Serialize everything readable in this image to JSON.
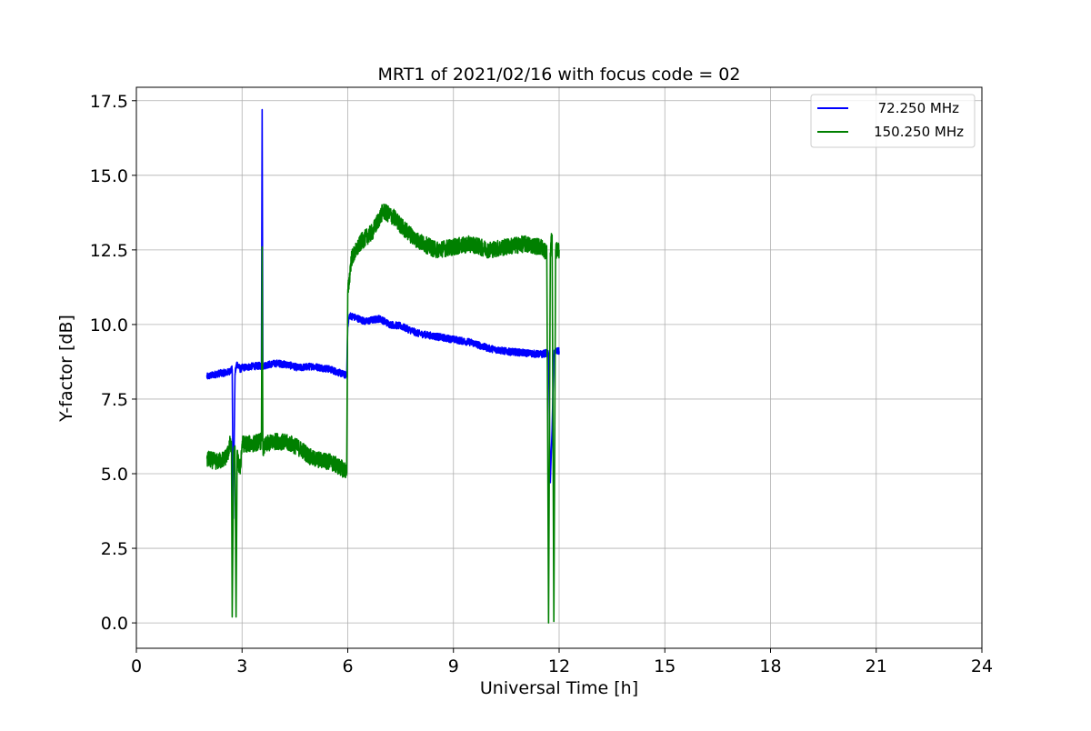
{
  "chart_data": {
    "type": "line",
    "title": "MRT1 of 2021/02/16 with focus code = 02",
    "xlabel": "Universal Time [h]",
    "ylabel": "Y-factor [dB]",
    "xlim": [
      0,
      24
    ],
    "ylim": [
      -0.85,
      17.95
    ],
    "xticks": [
      0,
      3,
      6,
      9,
      12,
      15,
      18,
      21,
      24
    ],
    "yticks": [
      0.0,
      2.5,
      5.0,
      7.5,
      10.0,
      12.5,
      15.0,
      17.5
    ],
    "ytick_labels": [
      "0.0",
      "2.5",
      "5.0",
      "7.5",
      "10.0",
      "12.5",
      "15.0",
      "17.5"
    ],
    "grid": true,
    "legend_position": "top-right",
    "series": [
      {
        "name": "72.250 MHz",
        "color": "#0000ff",
        "noise": 0.12,
        "points": [
          [
            2.0,
            8.25
          ],
          [
            2.3,
            8.35
          ],
          [
            2.6,
            8.4
          ],
          [
            2.72,
            8.5
          ],
          [
            2.75,
            3.5
          ],
          [
            2.8,
            8.35
          ],
          [
            2.85,
            8.7
          ],
          [
            2.95,
            8.5
          ],
          [
            3.0,
            8.55
          ],
          [
            3.3,
            8.6
          ],
          [
            3.55,
            8.62
          ],
          [
            3.57,
            17.2
          ],
          [
            3.59,
            8.6
          ],
          [
            3.7,
            8.65
          ],
          [
            4.0,
            8.7
          ],
          [
            4.3,
            8.65
          ],
          [
            4.6,
            8.55
          ],
          [
            5.0,
            8.6
          ],
          [
            5.5,
            8.5
          ],
          [
            5.95,
            8.3
          ],
          [
            5.97,
            8.25
          ],
          [
            6.0,
            10.0
          ],
          [
            6.05,
            10.3
          ],
          [
            6.3,
            10.2
          ],
          [
            6.5,
            10.1
          ],
          [
            6.9,
            10.2
          ],
          [
            7.2,
            10.0
          ],
          [
            7.5,
            9.95
          ],
          [
            8.0,
            9.7
          ],
          [
            8.5,
            9.6
          ],
          [
            9.0,
            9.5
          ],
          [
            9.5,
            9.4
          ],
          [
            10.0,
            9.2
          ],
          [
            10.5,
            9.1
          ],
          [
            11.0,
            9.05
          ],
          [
            11.5,
            9.0
          ],
          [
            11.65,
            9.05
          ],
          [
            11.7,
            9.0
          ],
          [
            11.75,
            4.7
          ],
          [
            11.8,
            6.5
          ],
          [
            11.85,
            9.0
          ],
          [
            11.9,
            9.1
          ],
          [
            12.0,
            9.1
          ]
        ]
      },
      {
        "name": "150.250 MHz",
        "color": "#008000",
        "noise": 0.28,
        "points": [
          [
            2.0,
            5.5
          ],
          [
            2.3,
            5.4
          ],
          [
            2.5,
            5.5
          ],
          [
            2.6,
            5.7
          ],
          [
            2.65,
            6.0
          ],
          [
            2.7,
            5.8
          ],
          [
            2.72,
            0.2
          ],
          [
            2.76,
            5.6
          ],
          [
            2.8,
            5.8
          ],
          [
            2.83,
            0.2
          ],
          [
            2.86,
            5.6
          ],
          [
            2.9,
            5.3
          ],
          [
            2.95,
            5.2
          ],
          [
            3.0,
            6.0
          ],
          [
            3.3,
            6.0
          ],
          [
            3.55,
            6.1
          ],
          [
            3.57,
            12.6
          ],
          [
            3.59,
            5.8
          ],
          [
            3.7,
            6.0
          ],
          [
            4.0,
            6.1
          ],
          [
            4.4,
            6.0
          ],
          [
            4.7,
            5.8
          ],
          [
            5.0,
            5.5
          ],
          [
            5.5,
            5.4
          ],
          [
            5.95,
            5.1
          ],
          [
            5.97,
            5.0
          ],
          [
            6.0,
            11.0
          ],
          [
            6.1,
            12.2
          ],
          [
            6.4,
            12.8
          ],
          [
            6.7,
            13.1
          ],
          [
            7.0,
            13.8
          ],
          [
            7.3,
            13.6
          ],
          [
            7.6,
            13.2
          ],
          [
            8.0,
            12.8
          ],
          [
            8.5,
            12.5
          ],
          [
            9.0,
            12.6
          ],
          [
            9.5,
            12.7
          ],
          [
            10.0,
            12.5
          ],
          [
            10.5,
            12.6
          ],
          [
            11.0,
            12.7
          ],
          [
            11.5,
            12.6
          ],
          [
            11.65,
            12.4
          ],
          [
            11.7,
            0.0
          ],
          [
            11.75,
            12.4
          ],
          [
            11.8,
            13.0
          ],
          [
            11.85,
            0.05
          ],
          [
            11.9,
            12.5
          ],
          [
            12.0,
            12.5
          ]
        ]
      }
    ]
  }
}
